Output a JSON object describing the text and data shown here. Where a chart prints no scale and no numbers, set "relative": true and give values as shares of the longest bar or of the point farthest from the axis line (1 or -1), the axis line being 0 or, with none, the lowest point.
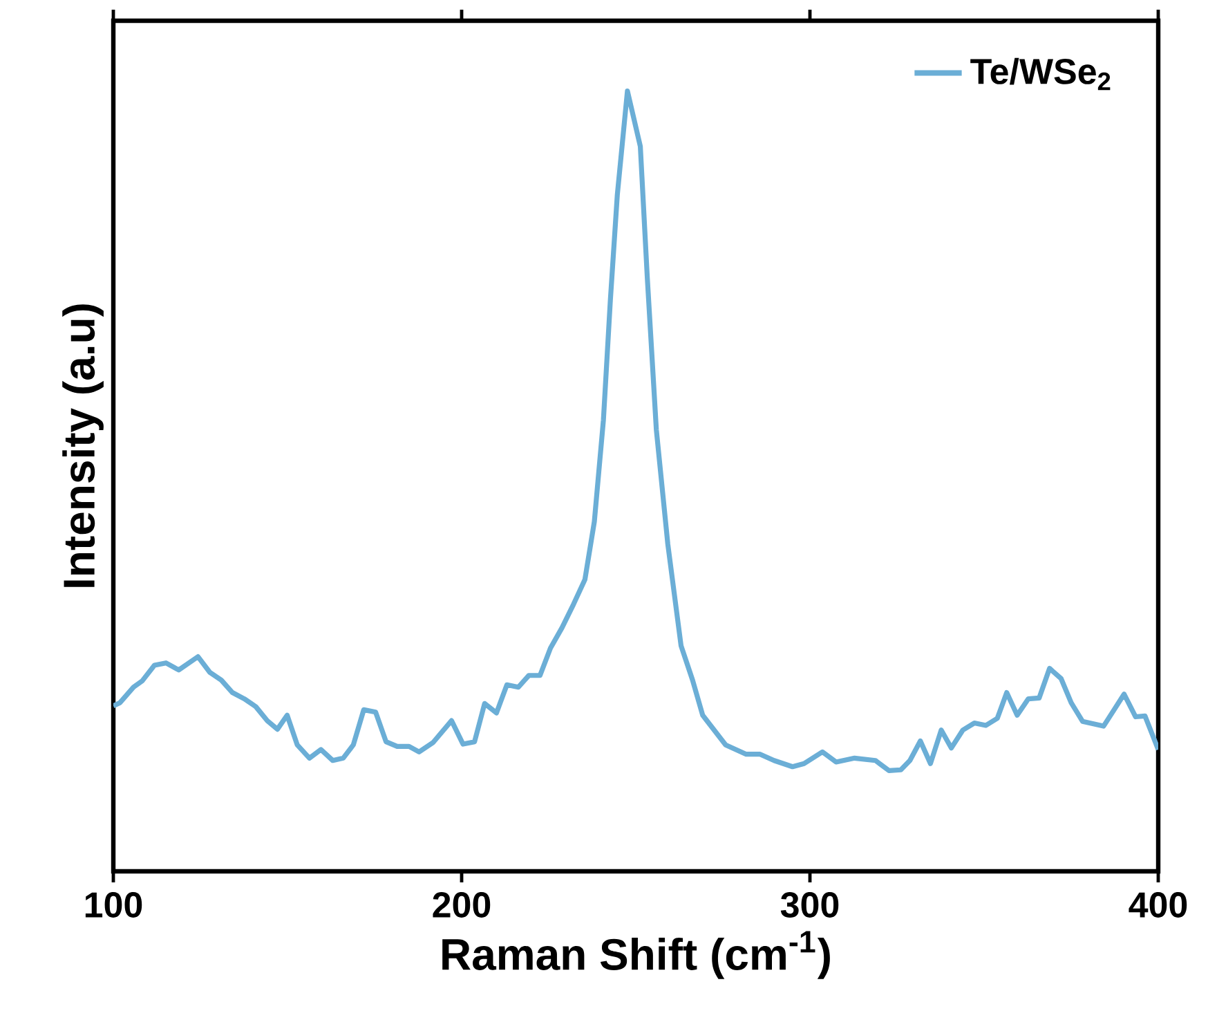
{
  "chart_data": {
    "type": "line",
    "xlabel": "Raman Shift (cm$^{-1}$)",
    "ylabel": "Intensity (a.u)",
    "relative": true,
    "xlim": [
      100,
      400
    ],
    "xticks": [
      100,
      200,
      300,
      400
    ],
    "legend": "top right",
    "marker": "none",
    "line_style": "solid",
    "series": [
      {
        "name": "Te/WSe$_{2}$",
        "color": "#6baed6",
        "x": [
          100,
          101.9,
          105.8,
          108.3,
          111.8,
          115.1,
          118.8,
          124.3,
          127.7,
          131.0,
          134.2,
          137.6,
          140.9,
          144.2,
          147.1,
          149.9,
          152.8,
          156.3,
          159.6,
          163.0,
          166.0,
          168.9,
          171.9,
          175.3,
          178.3,
          181.5,
          184.9,
          187.8,
          191.8,
          197.1,
          200.4,
          203.7,
          206.6,
          210.0,
          213.0,
          216.3,
          219.3,
          222.5,
          225.5,
          228.8,
          232.1,
          235.4,
          238.1,
          240.7,
          242.7,
          244.7,
          247.6,
          251.3,
          253.3,
          255.9,
          259.2,
          263.0,
          266.3,
          269.2,
          275.8,
          281.7,
          285.7,
          289.7,
          295.0,
          298.3,
          303.6,
          307.5,
          312.8,
          318.8,
          322.7,
          326.1,
          328.7,
          331.7,
          334.6,
          337.7,
          340.6,
          343.9,
          347.2,
          350.5,
          353.8,
          356.5,
          359.5,
          362.7,
          365.8,
          368.8,
          372.1,
          375.0,
          378.3,
          384.3,
          390.2,
          393.5,
          396.2,
          400.0
        ],
        "values": [
          0.212,
          0.216,
          0.236,
          0.244,
          0.264,
          0.267,
          0.258,
          0.275,
          0.255,
          0.245,
          0.229,
          0.221,
          0.211,
          0.193,
          0.182,
          0.2,
          0.162,
          0.145,
          0.156,
          0.142,
          0.145,
          0.162,
          0.207,
          0.204,
          0.166,
          0.16,
          0.16,
          0.153,
          0.165,
          0.193,
          0.163,
          0.166,
          0.215,
          0.203,
          0.239,
          0.236,
          0.251,
          0.251,
          0.286,
          0.312,
          0.342,
          0.374,
          0.448,
          0.578,
          0.732,
          0.867,
          1.0,
          0.929,
          0.761,
          0.566,
          0.419,
          0.289,
          0.245,
          0.2,
          0.162,
          0.15,
          0.15,
          0.142,
          0.134,
          0.138,
          0.153,
          0.14,
          0.145,
          0.142,
          0.129,
          0.13,
          0.142,
          0.167,
          0.138,
          0.181,
          0.158,
          0.181,
          0.19,
          0.187,
          0.196,
          0.229,
          0.2,
          0.221,
          0.222,
          0.26,
          0.247,
          0.216,
          0.192,
          0.186,
          0.227,
          0.198,
          0.199,
          0.156
        ]
      }
    ]
  }
}
